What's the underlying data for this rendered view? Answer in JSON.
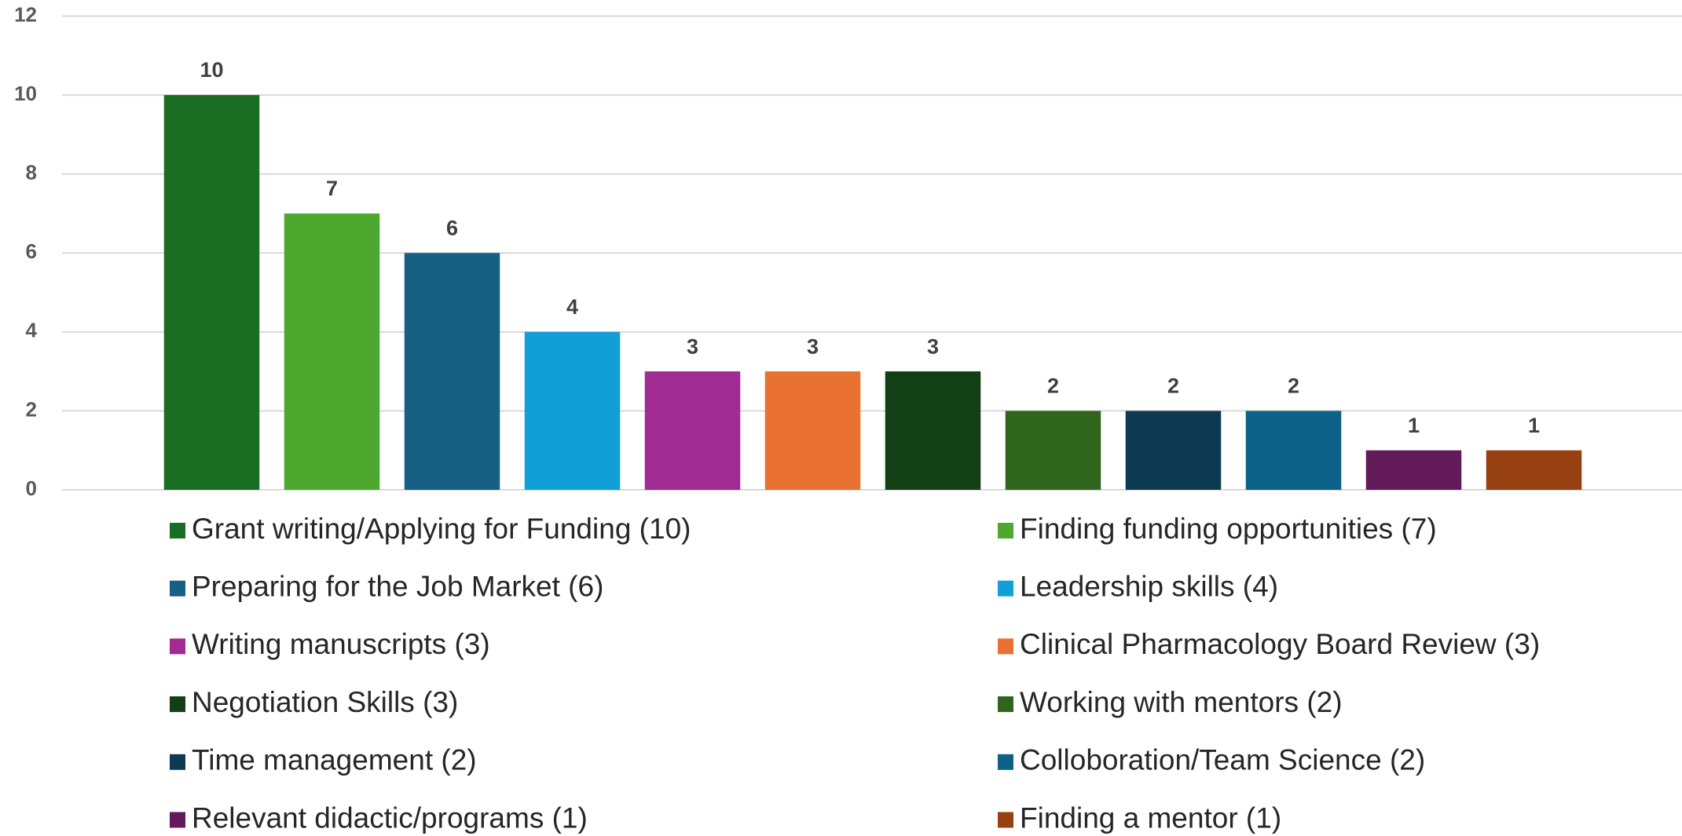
{
  "chart_data": {
    "type": "bar",
    "categories": [
      "Grant writing/Applying for Funding (10)",
      "Finding funding opportunities (7)",
      "Preparing for the Job Market (6)",
      "Leadership skills (4)",
      "Writing manuscripts (3)",
      "Clinical Pharmacology Board Review (3)",
      "Negotiation Skills (3)",
      "Working with mentors (2)",
      "Time management (2)",
      "Colloboration/Team Science (2)",
      "Relevant didactic/programs (1)",
      "Finding a mentor (1)"
    ],
    "values": [
      10,
      7,
      6,
      4,
      3,
      3,
      3,
      2,
      2,
      2,
      1,
      1
    ],
    "colors": [
      "#1a6e23",
      "#4ea72e",
      "#176083",
      "#129fd8",
      "#a02b93",
      "#e97132",
      "#123f16",
      "#2f651c",
      "#0e3a51",
      "#0b6187",
      "#621a58",
      "#974112"
    ],
    "ylim": [
      0,
      12
    ],
    "yticks": [
      0,
      2,
      4,
      6,
      8,
      10,
      12
    ],
    "grid": true,
    "legend": "bottom"
  }
}
